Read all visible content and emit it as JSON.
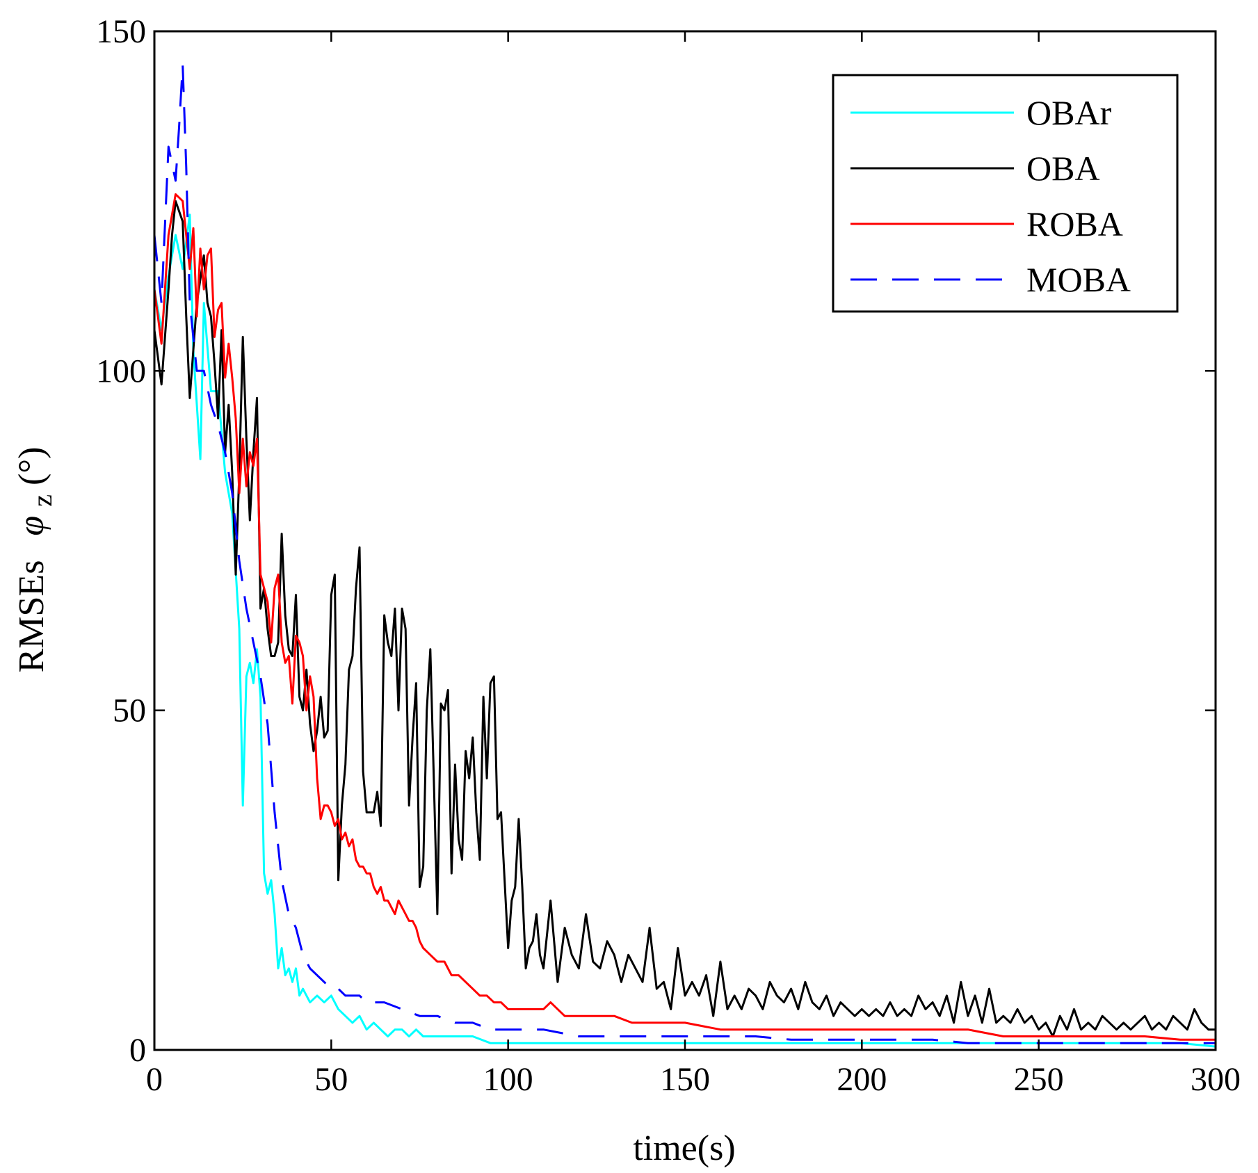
{
  "chart_data": {
    "type": "line",
    "title": "",
    "xlabel": "time(s)",
    "ylabel_main": "RMSEs",
    "ylabel_symbol": "φ",
    "ylabel_subscript": "z",
    "ylabel_unit": "(°)",
    "xlim": [
      0,
      300
    ],
    "ylim": [
      0,
      150
    ],
    "xticks": [
      0,
      50,
      100,
      150,
      200,
      250,
      300
    ],
    "yticks": [
      0,
      50,
      100,
      150
    ],
    "grid": false,
    "legend_position": "top-right",
    "series": [
      {
        "name": "OBAr",
        "color": "#00ffff",
        "dash": "solid",
        "x": [
          0,
          2,
          4,
          6,
          8,
          10,
          11,
          13,
          14,
          16,
          18,
          20,
          22,
          24,
          25,
          26,
          27,
          28,
          29,
          30,
          31,
          32,
          33,
          34,
          35,
          36,
          37,
          38,
          39,
          40,
          41,
          42,
          44,
          46,
          48,
          50,
          52,
          54,
          56,
          58,
          60,
          62,
          64,
          66,
          68,
          70,
          72,
          74,
          76,
          78,
          80,
          85,
          90,
          95,
          100,
          105,
          110,
          115,
          120,
          130,
          140,
          150,
          160,
          170,
          180,
          190,
          200,
          210,
          220,
          230,
          240,
          250,
          260,
          270,
          280,
          290,
          300
        ],
        "y": [
          112,
          106,
          114,
          120,
          115,
          123,
          103,
          87,
          110,
          97,
          97,
          85,
          79,
          62,
          36,
          55,
          57,
          54,
          59,
          52,
          26,
          23,
          25,
          20,
          12,
          15,
          11,
          12,
          10,
          12,
          8,
          9,
          7,
          8,
          7,
          8,
          6,
          5,
          4,
          5,
          3,
          4,
          3,
          2,
          3,
          3,
          2,
          3,
          2,
          2,
          2,
          2,
          2,
          1,
          1,
          1,
          1,
          1,
          1,
          1,
          1,
          1,
          1,
          1,
          1,
          1,
          1,
          1,
          1,
          1,
          1,
          1,
          1,
          1,
          1,
          1,
          0.5
        ]
      },
      {
        "name": "OBA",
        "color": "#000000",
        "dash": "solid",
        "x": [
          0,
          2,
          4,
          5,
          6,
          8,
          9,
          10,
          12,
          14,
          15,
          16,
          17,
          18,
          19,
          20,
          21,
          22,
          23,
          24,
          25,
          26,
          27,
          28,
          29,
          30,
          31,
          32,
          33,
          34,
          35,
          36,
          37,
          38,
          39,
          40,
          41,
          42,
          43,
          44,
          45,
          46,
          47,
          48,
          49,
          50,
          51,
          52,
          53,
          54,
          55,
          56,
          57,
          58,
          59,
          60,
          61,
          62,
          63,
          64,
          65,
          66,
          67,
          68,
          69,
          70,
          71,
          72,
          73,
          74,
          75,
          76,
          77,
          78,
          79,
          80,
          81,
          82,
          83,
          84,
          85,
          86,
          87,
          88,
          89,
          90,
          91,
          92,
          93,
          94,
          95,
          96,
          97,
          98,
          99,
          100,
          101,
          102,
          103,
          104,
          105,
          106,
          107,
          108,
          109,
          110,
          112,
          114,
          116,
          118,
          120,
          122,
          124,
          126,
          128,
          130,
          132,
          134,
          136,
          138,
          140,
          142,
          144,
          146,
          148,
          150,
          152,
          154,
          156,
          158,
          160,
          162,
          164,
          166,
          168,
          170,
          172,
          174,
          176,
          178,
          180,
          182,
          184,
          186,
          188,
          190,
          192,
          194,
          196,
          198,
          200,
          202,
          204,
          206,
          208,
          210,
          212,
          214,
          216,
          218,
          220,
          222,
          224,
          226,
          228,
          230,
          232,
          234,
          236,
          238,
          240,
          242,
          244,
          246,
          248,
          250,
          252,
          254,
          256,
          258,
          260,
          262,
          264,
          266,
          268,
          270,
          272,
          274,
          276,
          278,
          280,
          282,
          284,
          286,
          288,
          290,
          292,
          294,
          296,
          298,
          300
        ],
        "y": [
          106,
          98,
          112,
          120,
          125,
          122,
          108,
          96,
          110,
          117,
          110,
          108,
          101,
          93,
          106,
          88,
          95,
          85,
          70,
          85,
          105,
          90,
          78,
          88,
          96,
          65,
          68,
          62,
          58,
          58,
          60,
          76,
          64,
          59,
          58,
          67,
          52,
          50,
          56,
          48,
          44,
          47,
          52,
          46,
          47,
          67,
          70,
          25,
          36,
          42,
          56,
          58,
          68,
          74,
          41,
          35,
          35,
          35,
          38,
          33,
          64,
          60,
          58,
          65,
          50,
          65,
          62,
          36,
          46,
          54,
          24,
          27,
          50,
          59,
          40,
          20,
          51,
          50,
          53,
          26,
          42,
          31,
          28,
          44,
          40,
          46,
          35,
          28,
          52,
          40,
          54,
          55,
          34,
          35,
          25,
          15,
          22,
          24,
          34,
          24,
          12,
          15,
          16,
          20,
          14,
          12,
          22,
          10,
          18,
          14,
          12,
          20,
          13,
          12,
          16,
          14,
          10,
          14,
          12,
          10,
          18,
          9,
          10,
          6,
          15,
          8,
          10,
          8,
          11,
          5,
          13,
          6,
          8,
          6,
          9,
          8,
          6,
          10,
          8,
          7,
          9,
          6,
          10,
          7,
          6,
          8,
          5,
          7,
          6,
          5,
          6,
          5,
          6,
          5,
          7,
          5,
          6,
          5,
          8,
          6,
          7,
          5,
          8,
          4,
          10,
          5,
          8,
          4,
          9,
          4,
          5,
          4,
          6,
          4,
          5,
          3,
          4,
          2,
          5,
          3,
          6,
          3,
          4,
          3,
          5,
          4,
          3,
          4,
          3,
          4,
          5,
          3,
          4,
          3,
          5,
          4,
          3,
          6,
          4,
          3,
          3
        ]
      },
      {
        "name": "ROBA",
        "color": "#ff0000",
        "dash": "solid",
        "x": [
          0,
          2,
          4,
          6,
          8,
          10,
          11,
          12,
          13,
          14,
          15,
          16,
          17,
          18,
          19,
          20,
          21,
          22,
          23,
          24,
          25,
          26,
          27,
          28,
          29,
          30,
          31,
          32,
          33,
          34,
          35,
          36,
          37,
          38,
          39,
          40,
          41,
          42,
          43,
          44,
          45,
          46,
          47,
          48,
          49,
          50,
          51,
          52,
          53,
          54,
          55,
          56,
          57,
          58,
          59,
          60,
          61,
          62,
          63,
          64,
          65,
          66,
          67,
          68,
          69,
          70,
          71,
          72,
          73,
          74,
          75,
          76,
          78,
          80,
          82,
          84,
          86,
          88,
          90,
          92,
          94,
          96,
          98,
          100,
          102,
          104,
          106,
          108,
          110,
          112,
          114,
          116,
          118,
          120,
          125,
          130,
          135,
          140,
          145,
          150,
          160,
          170,
          180,
          190,
          200,
          210,
          215,
          220,
          225,
          230,
          240,
          250,
          260,
          270,
          280,
          290,
          300
        ],
        "y": [
          112,
          104,
          120,
          126,
          125,
          115,
          121,
          108,
          118,
          112,
          117,
          118,
          105,
          109,
          110,
          99,
          104,
          99,
          93,
          82,
          90,
          83,
          88,
          86,
          90,
          70,
          68,
          66,
          60,
          68,
          70,
          60,
          57,
          58,
          51,
          61,
          60,
          58,
          50,
          55,
          52,
          40,
          34,
          36,
          36,
          35,
          33,
          34,
          31,
          32,
          30,
          31,
          28,
          27,
          27,
          26,
          26,
          24,
          23,
          24,
          22,
          22,
          21,
          20,
          22,
          21,
          20,
          19,
          19,
          18,
          16,
          15,
          14,
          13,
          13,
          11,
          11,
          10,
          9,
          8,
          8,
          7,
          7,
          6,
          6,
          6,
          6,
          6,
          6,
          7,
          6,
          5,
          5,
          5,
          5,
          5,
          4,
          4,
          4,
          4,
          3,
          3,
          3,
          3,
          3,
          3,
          3,
          3,
          3,
          3,
          2,
          2,
          2,
          2,
          2,
          1.5,
          1.5
        ]
      },
      {
        "name": "MOBA",
        "color": "#0000ff",
        "dash": "dashed",
        "x": [
          0,
          2,
          4,
          6,
          7,
          8,
          9,
          10,
          12,
          14,
          16,
          18,
          20,
          22,
          24,
          26,
          28,
          30,
          32,
          34,
          36,
          38,
          40,
          42,
          44,
          46,
          48,
          50,
          52,
          54,
          56,
          58,
          60,
          65,
          70,
          75,
          80,
          85,
          90,
          95,
          100,
          110,
          120,
          130,
          140,
          150,
          160,
          170,
          180,
          190,
          200,
          210,
          220,
          230,
          240,
          250,
          260,
          270,
          280,
          290,
          300
        ],
        "y": [
          120,
          110,
          133,
          128,
          136,
          145,
          130,
          110,
          100,
          100,
          95,
          92,
          88,
          82,
          72,
          65,
          60,
          55,
          48,
          35,
          25,
          20,
          18,
          14,
          12,
          11,
          10,
          9,
          9,
          8,
          8,
          8,
          7,
          7,
          6,
          5,
          5,
          4,
          4,
          3,
          3,
          3,
          2,
          2,
          2,
          2,
          2,
          2,
          1.5,
          1.5,
          1.5,
          1.5,
          1.5,
          1,
          1,
          1,
          1,
          1,
          1,
          1,
          1
        ]
      }
    ]
  }
}
